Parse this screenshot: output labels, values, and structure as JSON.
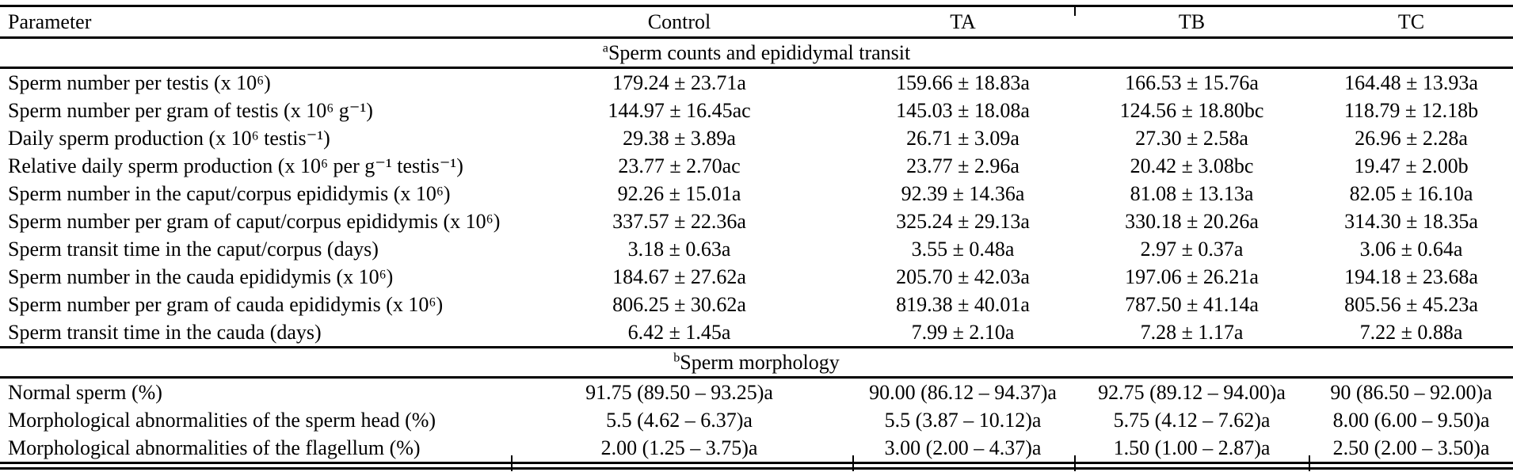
{
  "colors": {
    "text": "#000000",
    "background": "#ffffff",
    "rule": "#000000"
  },
  "table": {
    "columns": [
      "Parameter",
      "Control",
      "TA",
      "TB",
      "TC"
    ],
    "sections": [
      {
        "marker": "a",
        "title": "Sperm counts and epididymal transit",
        "rows": [
          {
            "label": "Sperm number per testis (x 10⁶)",
            "values": [
              "179.24 ± 23.71a",
              "159.66 ± 18.83a",
              "166.53 ± 15.76a",
              "164.48 ± 13.93a"
            ]
          },
          {
            "label": "Sperm number per gram of testis (x 10⁶ g⁻¹)",
            "values": [
              "144.97 ± 16.45ac",
              "145.03 ± 18.08a",
              "124.56 ± 18.80bc",
              "118.79 ± 12.18b"
            ]
          },
          {
            "label": "Daily sperm production (x 10⁶ testis⁻¹)",
            "values": [
              "29.38 ± 3.89a",
              "26.71 ± 3.09a",
              "27.30 ± 2.58a",
              "26.96 ± 2.28a"
            ]
          },
          {
            "label": "Relative daily sperm production (x 10⁶ per g⁻¹ testis⁻¹)",
            "values": [
              "23.77 ± 2.70ac",
              "23.77 ± 2.96a",
              "20.42 ± 3.08bc",
              "19.47 ± 2.00b"
            ]
          },
          {
            "label": "Sperm number in the caput/corpus epididymis (x 10⁶)",
            "values": [
              "92.26 ± 15.01a",
              "92.39 ± 14.36a",
              "81.08 ± 13.13a",
              "82.05 ± 16.10a"
            ]
          },
          {
            "label": "Sperm number per gram of caput/corpus epididymis (x 10⁶)",
            "values": [
              "337.57 ± 22.36a",
              "325.24 ± 29.13a",
              "330.18 ± 20.26a",
              "314.30 ± 18.35a"
            ]
          },
          {
            "label": "Sperm transit time in the caput/corpus (days)",
            "values": [
              "3.18 ± 0.63a",
              "3.55 ± 0.48a",
              "2.97 ± 0.37a",
              "3.06 ± 0.64a"
            ]
          },
          {
            "label": "Sperm number in the cauda epididymis (x 10⁶)",
            "values": [
              "184.67 ± 27.62a",
              "205.70 ± 42.03a",
              "197.06 ± 26.21a",
              "194.18 ± 23.68a"
            ]
          },
          {
            "label": "Sperm number per gram of cauda epididymis (x 10⁶)",
            "values": [
              "806.25 ± 30.62a",
              "819.38 ± 40.01a",
              "787.50 ± 41.14a",
              "805.56 ± 45.23a"
            ]
          },
          {
            "label": "Sperm transit time in the cauda (days)",
            "values": [
              "6.42 ± 1.45a",
              "7.99 ± 2.10a",
              "7.28 ± 1.17a",
              "7.22 ± 0.88a"
            ]
          }
        ]
      },
      {
        "marker": "b",
        "title": "Sperm morphology",
        "rows": [
          {
            "label": "Normal sperm (%)",
            "values": [
              "91.75 (89.50 – 93.25)a",
              "90.00 (86.12 – 94.37)a",
              "92.75 (89.12 – 94.00)a",
              "90 (86.50 – 92.00)a"
            ]
          },
          {
            "label": "Morphological abnormalities of the sperm head (%)",
            "values": [
              "5.5 (4.62 – 6.37)a",
              "5.5 (3.87 – 10.12)a",
              "5.75 (4.12 – 7.62)a",
              "8.00 (6.00 – 9.50)a"
            ]
          },
          {
            "label": "Morphological abnormalities of the flagellum (%)",
            "values": [
              "2.00 (1.25 – 3.75)a",
              "3.00 (2.00 – 4.37)a",
              "1.50 (1.00 – 2.87)a",
              "2.50 (2.00 – 3.50)a"
            ]
          }
        ]
      }
    ]
  }
}
